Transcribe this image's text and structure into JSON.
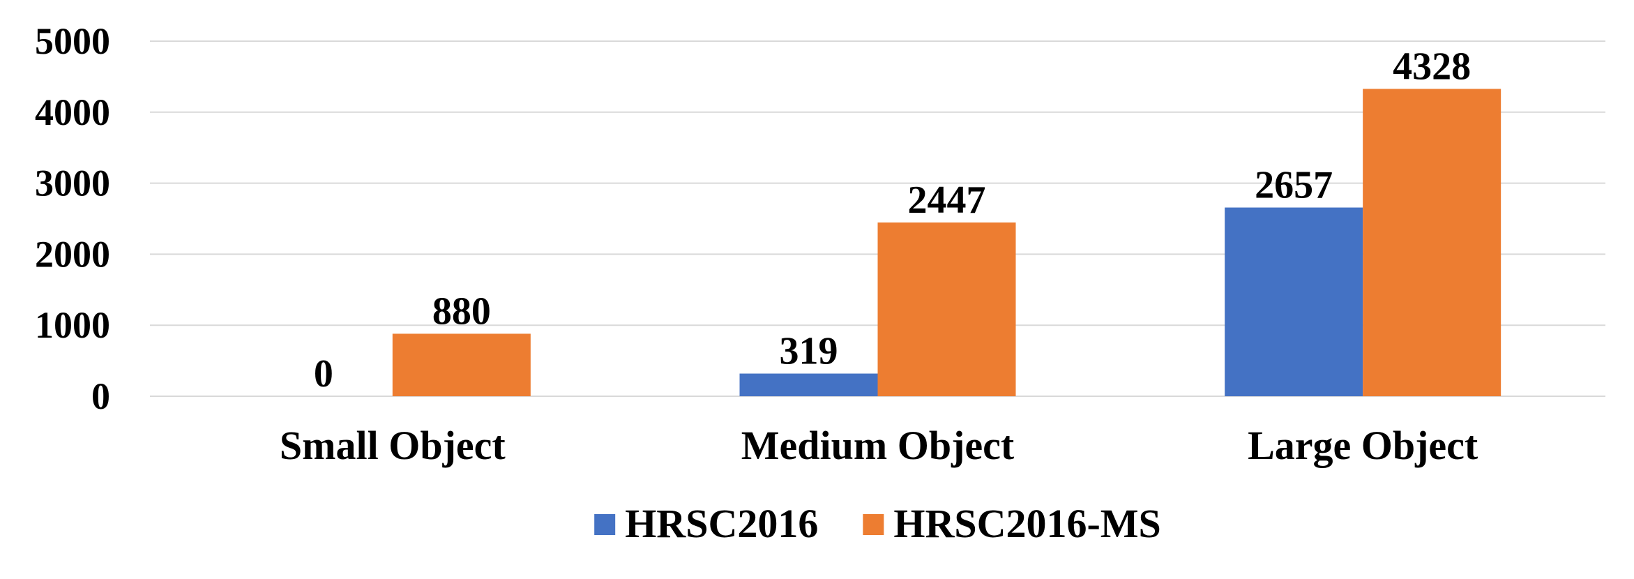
{
  "chart_data": {
    "type": "bar",
    "categories": [
      "Small Object",
      "Medium Object",
      "Large Object"
    ],
    "series": [
      {
        "name": "HRSC2016",
        "color": "#4472c4",
        "values": [
          0,
          319,
          2657
        ]
      },
      {
        "name": "HRSC2016-MS",
        "color": "#ed7d31",
        "values": [
          880,
          2447,
          4328
        ]
      }
    ],
    "ylim": [
      0,
      5000
    ],
    "yticks": [
      0,
      1000,
      2000,
      3000,
      4000,
      5000
    ],
    "grid": true,
    "legend": "bottom"
  }
}
